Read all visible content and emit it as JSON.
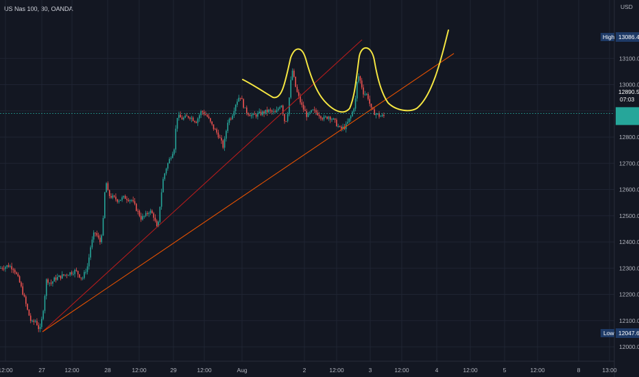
{
  "symbol_title": "US Nas 100, 30, OANDA",
  "currency_label": "USD",
  "colors": {
    "background": "#131722",
    "grid": "#1f2433",
    "up": "#26a69a",
    "down": "#ef5350",
    "red_trendline": "#b71c1c",
    "orange_trendline": "#e65100",
    "drawing": "#f5e642",
    "price_badge": "#26a69a",
    "high_low_badge": "#1e3a66"
  },
  "chart_data": {
    "type": "candlestick",
    "title": "US Nas 100, 30, OANDA",
    "ylabel": "USD",
    "ylim": [
      11980,
      13200
    ],
    "y_ticks": [
      "12000.0",
      "12100.0",
      "12200.0",
      "12300.0",
      "12400.0",
      "12500.0",
      "12600.0",
      "12700.0",
      "12800.0",
      "12900.0",
      "13000.0",
      "13100.0"
    ],
    "x_ticks": [
      "12:00",
      "27",
      "12:00",
      "28",
      "12:00",
      "29",
      "12:00",
      "Aug",
      "2",
      "12:00",
      "3",
      "12:00",
      "4",
      "12:00",
      "5",
      "12:00",
      "8",
      "13:00"
    ],
    "grid": true,
    "current_price": {
      "value": "12890.5",
      "countdown": "07:03"
    },
    "high": {
      "label": "High",
      "value": "13086.4"
    },
    "low": {
      "label": "Low",
      "value": "12047.6"
    },
    "anchors": [
      [
        0,
        12300
      ],
      [
        12,
        12310
      ],
      [
        20,
        12300
      ],
      [
        28,
        12250
      ],
      [
        34,
        12200
      ],
      [
        40,
        12140
      ],
      [
        46,
        12090
      ],
      [
        52,
        12100
      ],
      [
        58,
        12060
      ],
      [
        62,
        12120
      ],
      [
        68,
        12260
      ],
      [
        74,
        12240
      ],
      [
        80,
        12260
      ],
      [
        90,
        12270
      ],
      [
        100,
        12280
      ],
      [
        110,
        12290
      ],
      [
        120,
        12260
      ],
      [
        128,
        12310
      ],
      [
        132,
        12380
      ],
      [
        138,
        12440
      ],
      [
        146,
        12400
      ],
      [
        150,
        12460
      ],
      [
        154,
        12640
      ],
      [
        158,
        12580
      ],
      [
        164,
        12570
      ],
      [
        172,
        12560
      ],
      [
        182,
        12570
      ],
      [
        192,
        12560
      ],
      [
        200,
        12520
      ],
      [
        206,
        12490
      ],
      [
        212,
        12500
      ],
      [
        218,
        12520
      ],
      [
        224,
        12500
      ],
      [
        230,
        12440
      ],
      [
        234,
        12560
      ],
      [
        238,
        12640
      ],
      [
        242,
        12680
      ],
      [
        248,
        12720
      ],
      [
        254,
        12760
      ],
      [
        258,
        12880
      ],
      [
        266,
        12870
      ],
      [
        276,
        12880
      ],
      [
        286,
        12860
      ],
      [
        294,
        12900
      ],
      [
        302,
        12880
      ],
      [
        310,
        12840
      ],
      [
        318,
        12810
      ],
      [
        326,
        12760
      ],
      [
        332,
        12860
      ],
      [
        338,
        12880
      ],
      [
        344,
        12930
      ],
      [
        350,
        12960
      ],
      [
        358,
        12900
      ],
      [
        368,
        12880
      ],
      [
        380,
        12890
      ],
      [
        392,
        12900
      ],
      [
        402,
        12890
      ],
      [
        410,
        12930
      ],
      [
        416,
        12850
      ],
      [
        420,
        12900
      ],
      [
        426,
        13060
      ],
      [
        432,
        12980
      ],
      [
        440,
        12920
      ],
      [
        448,
        12880
      ],
      [
        456,
        12900
      ],
      [
        464,
        12890
      ],
      [
        472,
        12870
      ],
      [
        480,
        12880
      ],
      [
        488,
        12860
      ],
      [
        496,
        12830
      ],
      [
        504,
        12840
      ],
      [
        512,
        12880
      ],
      [
        518,
        12930
      ],
      [
        522,
        13040
      ],
      [
        526,
        13010
      ],
      [
        530,
        12970
      ],
      [
        536,
        12960
      ],
      [
        542,
        12900
      ],
      [
        548,
        12890
      ],
      [
        554,
        12880
      ],
      [
        560,
        12880
      ]
    ]
  }
}
